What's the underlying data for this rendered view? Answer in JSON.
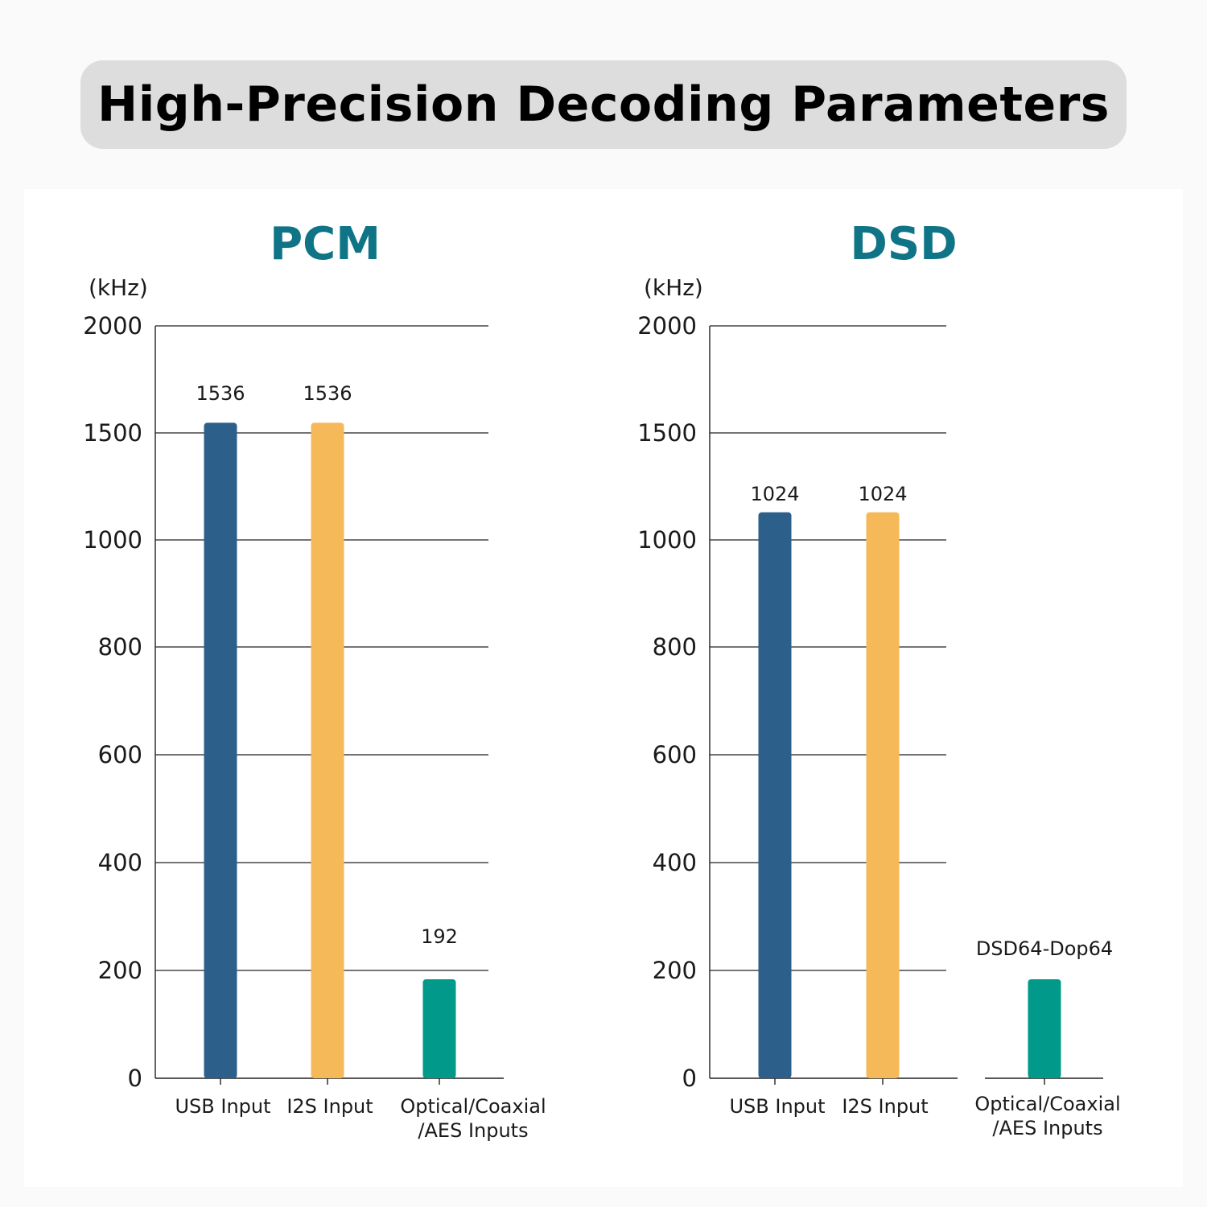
{
  "header": {
    "title": "High-Precision Decoding Parameters"
  },
  "colors": {
    "usb": "#2d5f8b",
    "i2s": "#f5b95a",
    "optical": "#00998a",
    "title": "#0e7486"
  },
  "chart_data": [
    {
      "type": "bar",
      "title": "PCM",
      "ylabel": "(kHz)",
      "yticks": [
        0,
        200,
        400,
        600,
        800,
        1000,
        1500,
        2000
      ],
      "ylim": [
        0,
        2000
      ],
      "grid": true,
      "categories": [
        [
          "USB Input"
        ],
        [
          "I2S Input"
        ],
        [
          "Optical/Coaxial",
          "/AES Inputs"
        ]
      ],
      "values": [
        1536,
        1536,
        192
      ],
      "data_labels": [
        "1536",
        "1536",
        "192"
      ]
    },
    {
      "type": "bar",
      "title": "DSD",
      "ylabel": "(kHz)",
      "yticks": [
        0,
        200,
        400,
        600,
        800,
        1000,
        1500,
        2000
      ],
      "ylim": [
        0,
        2000
      ],
      "grid": true,
      "categories": [
        [
          "USB Input"
        ],
        [
          "I2S Input"
        ],
        [
          "Optical/Coaxial",
          "/AES Inputs"
        ]
      ],
      "values": [
        1024,
        1024,
        64
      ],
      "data_labels": [
        "1024",
        "1024",
        "DSD64-Dop64"
      ]
    }
  ]
}
